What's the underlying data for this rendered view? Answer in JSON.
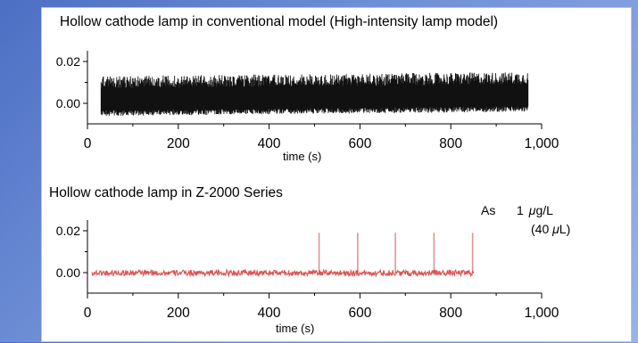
{
  "chart_data": [
    {
      "type": "line",
      "title": "Hollow cathode lamp in conventional model (High-intensity lamp model)",
      "xlabel": "time (s)",
      "xlim": [
        0,
        1000
      ],
      "ylim": [
        -0.012,
        0.025
      ],
      "x_ticks": [
        0,
        200,
        400,
        600,
        800,
        1000
      ],
      "x_tick_labels": [
        "0",
        "200",
        "400",
        "600",
        "800",
        "1,000"
      ],
      "y_ticks": [
        0.02,
        0.0
      ],
      "y_tick_labels": [
        "0.02",
        "0.00"
      ],
      "series": [
        {
          "color": "#111111",
          "x_range": [
            30,
            970
          ],
          "baseline": 0.0,
          "noise_band": [
            -0.006,
            0.013
          ],
          "description_of_trace": "noisy band"
        }
      ]
    },
    {
      "type": "line",
      "title": "Hollow cathode lamp in Z-2000 Series",
      "xlabel": "time (s)",
      "xlim": [
        0,
        1000
      ],
      "ylim": [
        -0.012,
        0.025
      ],
      "x_ticks": [
        0,
        200,
        400,
        600,
        800,
        1000
      ],
      "x_tick_labels": [
        "0",
        "200",
        "400",
        "600",
        "800",
        "1,000"
      ],
      "y_ticks": [
        0.02,
        0.0
      ],
      "y_tick_labels": [
        "0.02",
        "0.00"
      ],
      "series": [
        {
          "color": "#d23a3a",
          "x_range": [
            10,
            850
          ],
          "baseline": 0.0,
          "noise_band": [
            -0.0015,
            0.0012
          ],
          "peaks": [
            {
              "x": 510,
              "y": 0.019
            },
            {
              "x": 595,
              "y": 0.019
            },
            {
              "x": 678,
              "y": 0.019
            },
            {
              "x": 763,
              "y": 0.019
            },
            {
              "x": 848,
              "y": 0.019
            }
          ]
        }
      ],
      "annotation": {
        "element": "As",
        "value": "1",
        "unit_mu": "μ",
        "unit_rest": "g/L",
        "volume_open": "(40 ",
        "volume_mu": "μ",
        "volume_close": "L)"
      }
    }
  ]
}
